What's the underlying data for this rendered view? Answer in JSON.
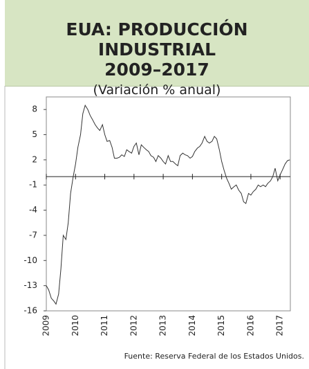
{
  "chart_data": {
    "type": "line",
    "title": [
      "EUA: PRODUCCIÓN INDUSTRIAL",
      "2009–2017"
    ],
    "subtitle": "(Variación % anual)",
    "source": "Fuente:  Reserva Federal de los Estados Unidos.",
    "x": [
      2009.0,
      2009.08,
      2009.17,
      2009.25,
      2009.33,
      2009.42,
      2009.5,
      2009.58,
      2009.67,
      2009.75,
      2009.83,
      2009.92,
      2010.0,
      2010.08,
      2010.17,
      2010.25,
      2010.33,
      2010.42,
      2010.5,
      2010.58,
      2010.67,
      2010.75,
      2010.83,
      2010.92,
      2011.0,
      2011.08,
      2011.17,
      2011.25,
      2011.33,
      2011.42,
      2011.5,
      2011.58,
      2011.67,
      2011.75,
      2011.83,
      2011.92,
      2012.0,
      2012.08,
      2012.17,
      2012.25,
      2012.33,
      2012.42,
      2012.5,
      2012.58,
      2012.67,
      2012.75,
      2012.83,
      2012.92,
      2013.0,
      2013.08,
      2013.17,
      2013.25,
      2013.33,
      2013.42,
      2013.5,
      2013.58,
      2013.67,
      2013.75,
      2013.83,
      2013.92,
      2014.0,
      2014.08,
      2014.17,
      2014.25,
      2014.33,
      2014.42,
      2014.5,
      2014.58,
      2014.67,
      2014.75,
      2014.83,
      2014.92,
      2015.0,
      2015.08,
      2015.17,
      2015.25,
      2015.33,
      2015.42,
      2015.5,
      2015.58,
      2015.67,
      2015.75,
      2015.83,
      2015.92,
      2016.0,
      2016.08,
      2016.17,
      2016.25,
      2016.33,
      2016.42,
      2016.5,
      2016.58,
      2016.67,
      2016.75,
      2016.83,
      2016.92,
      2017.0,
      2017.08,
      2017.17,
      2017.25,
      2017.33
    ],
    "values": [
      -13,
      -13.5,
      -14.5,
      -14.8,
      -15.2,
      -14,
      -11,
      -7,
      -7.5,
      -5.5,
      -2,
      0,
      1.5,
      3.5,
      5,
      7.5,
      8.5,
      8,
      7.3,
      6.8,
      6.2,
      5.8,
      5.5,
      6.2,
      5,
      4.2,
      4.3,
      3.5,
      2.2,
      2.2,
      2.3,
      2.6,
      2.4,
      3.2,
      3,
      2.8,
      3.6,
      4,
      2.6,
      3.8,
      3.5,
      3.2,
      3,
      2.5,
      2.3,
      1.8,
      2.5,
      2.2,
      1.8,
      1.5,
      2.5,
      1.8,
      1.8,
      1.5,
      1.3,
      2.5,
      2.8,
      2.6,
      2.5,
      2.2,
      2.4,
      3,
      3.4,
      3.6,
      4,
      4.8,
      4.2,
      4,
      4.2,
      4.8,
      4.5,
      3.2,
      1.8,
      0.8,
      -0.2,
      -0.8,
      -1.5,
      -1.2,
      -1,
      -1.6,
      -2,
      -3,
      -3.2,
      -2,
      -2.2,
      -1.8,
      -1.5,
      -1,
      -1.2,
      -1,
      -1.2,
      -0.8,
      -0.5,
      0,
      1,
      -0.5,
      0.2,
      0.8,
      1.5,
      1.9,
      2
    ],
    "color": "#333333",
    "xlim": [
      2009,
      2017.35
    ],
    "xticks": [
      2009,
      2010,
      2011,
      2012,
      2013,
      2014,
      2015,
      2016,
      2017
    ],
    "ylim": [
      -16,
      9.5
    ],
    "yticks": [
      8,
      5,
      2,
      -1,
      -4,
      -7,
      -10,
      -13,
      -16
    ]
  }
}
